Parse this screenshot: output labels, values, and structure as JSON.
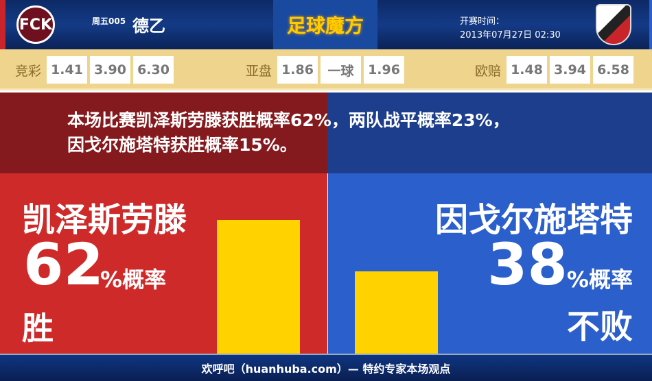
{
  "header": {
    "home_logo_text": "FCK",
    "match_no": "周五005",
    "league": "德乙",
    "brand": "足球魔方",
    "time_label": "开赛时间：",
    "time": "2013年07月27日 02:30"
  },
  "odds": {
    "jingcai": {
      "label": "竞彩",
      "values": [
        "1.41",
        "3.90",
        "6.30"
      ]
    },
    "yapan": {
      "label": "亚盘",
      "values": [
        "1.86",
        "一球",
        "1.96"
      ]
    },
    "oupei": {
      "label": "欧赔",
      "values": [
        "1.48",
        "3.94",
        "6.58"
      ]
    }
  },
  "summary": {
    "line1": "本场比赛凯泽斯劳滕获胜概率62%，两队战平概率23%，",
    "line2": "因戈尔施塔特获胜概率15%。"
  },
  "home": {
    "name": "凯泽斯劳滕",
    "percent": "62",
    "unit": "%概率",
    "outcome": "胜",
    "color": "#cf2a2a",
    "bar_value": 62
  },
  "away": {
    "name": "因戈尔施塔特",
    "percent": "38",
    "unit": "%概率",
    "outcome": "不败",
    "color": "#2b5fcc",
    "bar_value": 38
  },
  "footer": {
    "text": "欢呼吧（huanhuba.com）— 特约专家本场观点"
  }
}
